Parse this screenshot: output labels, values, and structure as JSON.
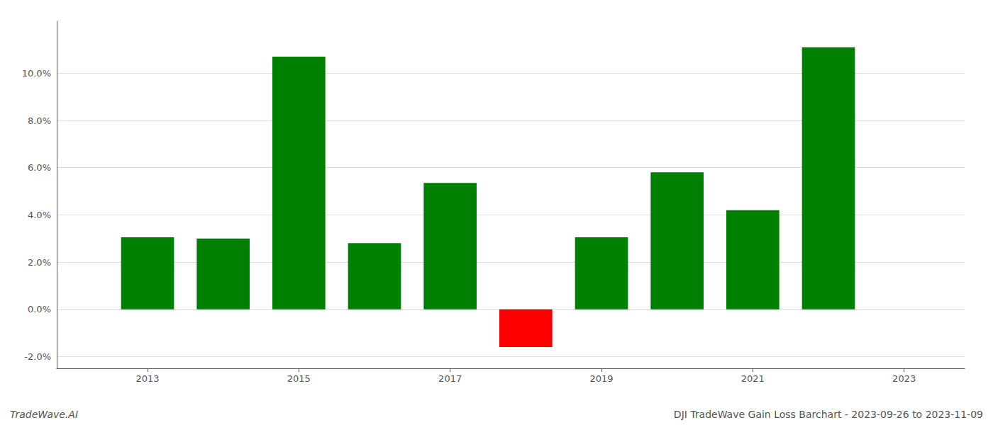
{
  "chart_data": {
    "type": "bar",
    "x": [
      2013,
      2014,
      2015,
      2016,
      2017,
      2018,
      2019,
      2020,
      2021,
      2022
    ],
    "values": [
      0.0305,
      0.03,
      0.107,
      0.028,
      0.0535,
      -0.016,
      0.0305,
      0.058,
      0.042,
      0.111
    ],
    "colors": [
      "#008000",
      "#008000",
      "#008000",
      "#008000",
      "#008000",
      "#ff0000",
      "#008000",
      "#008000",
      "#008000",
      "#008000"
    ],
    "xlim": [
      2011.8,
      2023.8
    ],
    "xticks": [
      2013,
      2015,
      2017,
      2019,
      2021,
      2023
    ],
    "ylim": [
      -0.025,
      0.122
    ],
    "yticks": [
      {
        "value": -0.02,
        "label": "-2.0%"
      },
      {
        "value": 0.0,
        "label": "0.0%"
      },
      {
        "value": 0.02,
        "label": "2.0%"
      },
      {
        "value": 0.04,
        "label": "4.0%"
      },
      {
        "value": 0.06,
        "label": "6.0%"
      },
      {
        "value": 0.08,
        "label": "8.0%"
      },
      {
        "value": 0.1,
        "label": "10.0%"
      }
    ],
    "grid": true,
    "annotations": [
      "TradeWave.AI",
      "DJI TradeWave Gain Loss Barchart - 2023-09-26 to 2023-11-09"
    ]
  }
}
